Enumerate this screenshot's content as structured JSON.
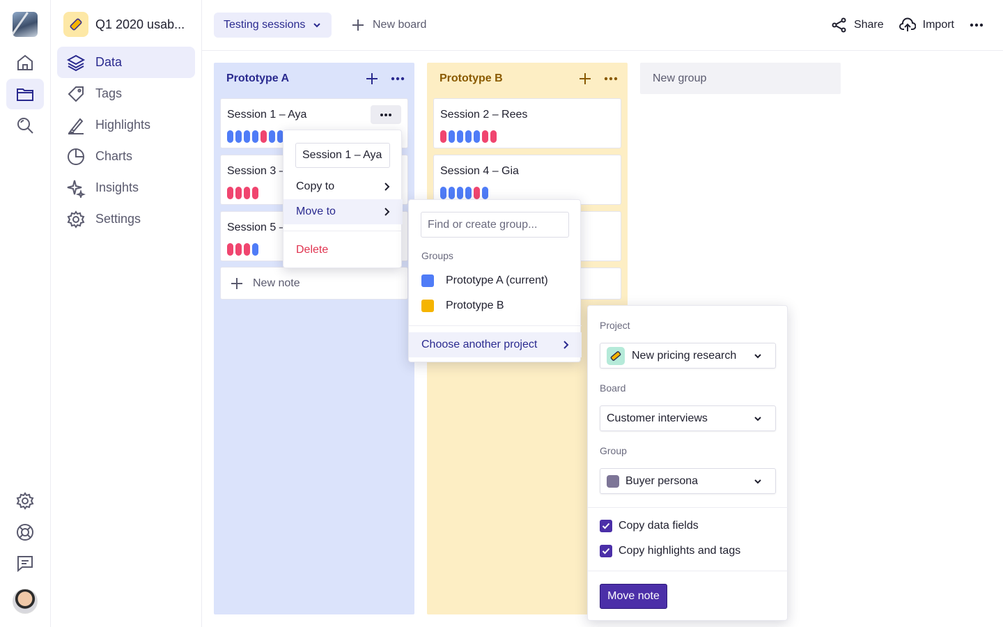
{
  "project": {
    "title": "Q1 2020 usab..."
  },
  "nav": [
    {
      "label": "Data",
      "icon": "layers-icon",
      "active": true
    },
    {
      "label": "Tags",
      "icon": "tag-icon"
    },
    {
      "label": "Highlights",
      "icon": "highlighter-icon"
    },
    {
      "label": "Charts",
      "icon": "pie-chart-icon"
    },
    {
      "label": "Insights",
      "icon": "sparkles-icon"
    },
    {
      "label": "Settings",
      "icon": "gear-icon"
    }
  ],
  "topbar": {
    "board": "Testing sessions",
    "new_board": "New board",
    "share": "Share",
    "import": "Import"
  },
  "columns": {
    "a": {
      "title": "Prototype A",
      "cards": [
        {
          "title": "Session 1 – Aya",
          "dots": [
            "b",
            "b",
            "b",
            "b",
            "r",
            "b",
            "b"
          ]
        },
        {
          "title": "Session 3 –",
          "dots": [
            "r",
            "r",
            "r",
            "r"
          ]
        },
        {
          "title": "Session 5 –",
          "dots": [
            "r",
            "r",
            "r",
            "b"
          ]
        }
      ],
      "new_note": "New note"
    },
    "b": {
      "title": "Prototype B",
      "cards": [
        {
          "title": "Session 2 – Rees",
          "dots": [
            "r",
            "b",
            "b",
            "b",
            "b",
            "r",
            "r"
          ]
        },
        {
          "title": "Session 4 – Gia",
          "dots": [
            "b",
            "b",
            "b",
            "b",
            "r",
            "b"
          ]
        }
      ]
    },
    "new_group": "New group"
  },
  "menu": {
    "note_name": "Session 1 – Aya",
    "copy_to": "Copy to",
    "move_to": "Move to",
    "delete": "Delete"
  },
  "submenu": {
    "search_placeholder": "Find or create group...",
    "groups_label": "Groups",
    "groups": [
      {
        "label": "Prototype A (current)",
        "color": "#4f7cf7"
      },
      {
        "label": "Prototype B",
        "color": "#f5b400"
      }
    ],
    "choose_project": "Choose another project"
  },
  "panel": {
    "project_label": "Project",
    "project_value": "New pricing research",
    "board_label": "Board",
    "board_value": "Customer interviews",
    "group_label": "Group",
    "group_value": "Buyer persona",
    "copy_fields": "Copy data fields",
    "copy_highlights": "Copy highlights and tags",
    "move_button": "Move note"
  },
  "colors": {
    "accent": "#4b2fa8",
    "blue_dot": "#4f7cf7",
    "red_dot": "#f0456f"
  }
}
